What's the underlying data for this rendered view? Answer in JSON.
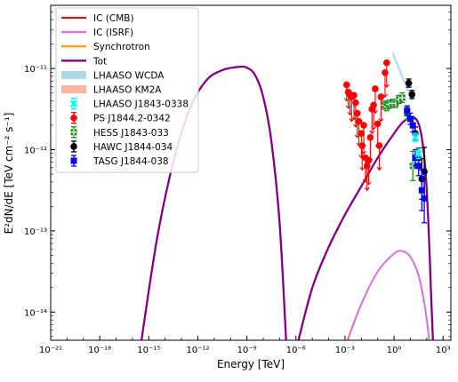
{
  "chart_data": {
    "type": "scatter",
    "title": "",
    "xlabel": "Energy [TeV]",
    "ylabel": "E²dN/dE  [TeV cm⁻² s⁻¹]",
    "x_scale": "log",
    "y_scale": "log",
    "xlim": [
      1e-21,
      3000
    ],
    "ylim": [
      4.5e-15,
      6e-11
    ],
    "grid": false,
    "legend_position": "top-left",
    "x_ticks": [
      {
        "label": "10⁻²¹",
        "value": 1e-21
      },
      {
        "label": "10⁻¹⁸",
        "value": 1e-18
      },
      {
        "label": "10⁻¹⁵",
        "value": 1e-15
      },
      {
        "label": "10⁻¹²",
        "value": 1e-12
      },
      {
        "label": "10⁻⁹",
        "value": 1e-09
      },
      {
        "label": "10⁻⁶",
        "value": 1e-06
      },
      {
        "label": "10⁻³",
        "value": 0.001
      },
      {
        "label": "10⁰",
        "value": 1
      },
      {
        "label": "10³",
        "value": 1000
      }
    ],
    "y_ticks": [
      {
        "label": "10⁻¹⁴",
        "value": 1e-14
      },
      {
        "label": "10⁻¹³",
        "value": 1e-13
      },
      {
        "label": "10⁻¹²",
        "value": 1e-12
      },
      {
        "label": "10⁻¹¹",
        "value": 1e-11
      }
    ],
    "legend": [
      {
        "name": "IC (CMB)",
        "kind": "line",
        "color": "#b22222"
      },
      {
        "name": "IC (ISRF)",
        "kind": "line",
        "color": "#da70d6"
      },
      {
        "name": "Synchrotron",
        "kind": "line",
        "color": "#ffa500"
      },
      {
        "name": "Tot",
        "kind": "line",
        "color": "#800080"
      },
      {
        "name": "LHAASO WCDA",
        "kind": "band",
        "color": "#add8e6"
      },
      {
        "name": "LHAASO KM2A",
        "kind": "band",
        "color": "#ffb6a0"
      },
      {
        "name": "LHAASO J1843-0338",
        "kind": "marker",
        "marker": "x",
        "color": "#00ffff"
      },
      {
        "name": "PS J1844.2-0342",
        "kind": "marker",
        "marker": "circle",
        "color": "#ff0000"
      },
      {
        "name": "HESS J1843-033",
        "kind": "marker",
        "marker": "plus",
        "color": "#228b22"
      },
      {
        "name": "HAWC J1844-034",
        "kind": "marker",
        "marker": "circle",
        "color": "#000000"
      },
      {
        "name": "TASG J1844-038",
        "kind": "marker",
        "marker": "square",
        "color": "#0000ff"
      }
    ],
    "curves": [
      {
        "name": "Tot",
        "color": "#800080",
        "width": 2.3,
        "points": [
          [
            -15.45,
            -14.35
          ],
          [
            -14.5,
            -13.1
          ],
          [
            -13.5,
            -12.15
          ],
          [
            -12.5,
            -11.5
          ],
          [
            -11.5,
            -11.15
          ],
          [
            -10.5,
            -11.02
          ],
          [
            -9.5,
            -10.98
          ],
          [
            -9,
            -10.99
          ],
          [
            -8.5,
            -11.08
          ],
          [
            -8,
            -11.35
          ],
          [
            -7.5,
            -11.9
          ],
          [
            -7,
            -12.9
          ],
          [
            -6.6,
            -14.35
          ]
        ]
      },
      {
        "name": "Tot-IC",
        "color": "#800080",
        "width": 2.3,
        "points": [
          [
            -5.85,
            -14.35
          ],
          [
            -5,
            -13.7
          ],
          [
            -4,
            -13.2
          ],
          [
            -3,
            -12.8
          ],
          [
            -2,
            -12.45
          ],
          [
            -1,
            -12.1
          ],
          [
            0,
            -11.8
          ],
          [
            0.6,
            -11.65
          ],
          [
            1.2,
            -11.6
          ],
          [
            1.6,
            -11.75
          ],
          [
            1.9,
            -12.2
          ],
          [
            2.1,
            -12.9
          ],
          [
            2.25,
            -13.7
          ],
          [
            2.38,
            -14.35
          ]
        ]
      },
      {
        "name": "IC (ISRF)",
        "color": "#da70d6",
        "width": 2,
        "points": [
          [
            -2.85,
            -14.35
          ],
          [
            -2,
            -13.9
          ],
          [
            -1,
            -13.5
          ],
          [
            0,
            -13.28
          ],
          [
            0.5,
            -13.25
          ],
          [
            1,
            -13.32
          ],
          [
            1.5,
            -13.55
          ],
          [
            1.9,
            -13.95
          ],
          [
            2.15,
            -14.35
          ]
        ]
      }
    ],
    "bands": [
      {
        "name": "LHAASO WCDA",
        "color": "#add8e6",
        "x": [
          -0.1,
          1.1
        ],
        "y_upper": [
          -10.77,
          -11.35
        ],
        "y_lower": [
          -10.84,
          -11.43
        ]
      }
    ],
    "series": [
      {
        "name": "PS J1844.2-0342",
        "marker": "circle",
        "color": "#ff0000",
        "points": [
          {
            "x": -2.9,
            "y": -11.2,
            "lo": 0.2
          },
          {
            "x": -2.8,
            "y": -11.29,
            "lo": 0.2
          },
          {
            "x": -2.7,
            "y": -11.32,
            "lo": 0.25
          },
          {
            "x": -2.6,
            "y": -11.35,
            "lo": 0.3
          },
          {
            "x": -2.45,
            "y": -11.33,
            "lo": 0.3
          },
          {
            "x": -2.35,
            "y": -11.42,
            "lo": 0.3
          },
          {
            "x": -2.25,
            "y": -11.55,
            "lo": 0.3
          },
          {
            "x": -2.15,
            "y": -11.65,
            "lo": 0.3
          },
          {
            "x": -2.0,
            "y": -11.8,
            "lo": 0.3
          },
          {
            "x": -1.95,
            "y": -11.95,
            "lo": 0.3
          },
          {
            "x": -1.85,
            "y": -11.7,
            "lo": 0.35
          },
          {
            "x": -1.75,
            "y": -12.1,
            "lo": 0.3
          },
          {
            "x": -1.65,
            "y": -12.2,
            "lo": 0.3
          },
          {
            "x": -1.55,
            "y": -12.13,
            "lo": 0.3
          },
          {
            "x": -1.45,
            "y": -11.85,
            "lo": 0.3
          },
          {
            "x": -1.35,
            "y": -11.5,
            "lo": 0.3
          },
          {
            "x": -1.25,
            "y": -11.45,
            "lo": 0.3
          },
          {
            "x": -1.15,
            "y": -11.25,
            "lo": 0.3
          },
          {
            "x": -1.0,
            "y": -11.68,
            "lo": 0.3
          },
          {
            "x": -0.9,
            "y": -11.95,
            "lo": 0.3
          },
          {
            "x": -0.8,
            "y": -11.35,
            "lo": 0.3
          },
          {
            "x": -0.55,
            "y": -11.05,
            "lo": 0.3
          },
          {
            "x": -0.45,
            "y": -10.93,
            "lo": 0.3
          }
        ]
      },
      {
        "name": "HESS J1843-033",
        "marker": "plus",
        "color": "#228b22",
        "points": [
          {
            "x": -0.6,
            "y": -11.45,
            "err": 0.05
          },
          {
            "x": -0.45,
            "y": -11.47,
            "err": 0.05
          },
          {
            "x": -0.3,
            "y": -11.44,
            "err": 0.05
          },
          {
            "x": -0.1,
            "y": -11.43,
            "err": 0.05
          },
          {
            "x": 0.1,
            "y": -11.43,
            "err": 0.05
          },
          {
            "x": 0.3,
            "y": -11.38,
            "err": 0.05
          },
          {
            "x": 0.5,
            "y": -11.36,
            "err": 0.06
          },
          {
            "x": 0.8,
            "y": -11.55,
            "err": 0.08
          },
          {
            "x": 1.15,
            "y": -12.2,
            "err": 0.18
          }
        ]
      },
      {
        "name": "HAWC J1844-034",
        "marker": "circle",
        "color": "#000000",
        "points": [
          {
            "x": 0.9,
            "y": -11.18,
            "err": 0.05
          },
          {
            "x": 1.1,
            "y": -11.32,
            "err": 0.05
          },
          {
            "x": 1.3,
            "y": -11.8,
            "err": 0.08
          },
          {
            "x": 1.5,
            "y": -12.1,
            "err": 0.12
          },
          {
            "x": 1.7,
            "y": -12.36,
            "err": 0.25
          },
          {
            "x": 1.85,
            "y": -12.27,
            "err": 0.3
          }
        ]
      },
      {
        "name": "TASG J1844-038",
        "marker": "square",
        "color": "#0000ff",
        "points": [
          {
            "x": 0.8,
            "y": -11.52,
            "err": 0.06
          },
          {
            "x": 1.0,
            "y": -11.62,
            "err": 0.07
          },
          {
            "x": 1.15,
            "y": -11.7,
            "err": 0.08
          },
          {
            "x": 1.3,
            "y": -12.1,
            "err": 0.1
          },
          {
            "x": 1.5,
            "y": -12.2,
            "err": 0.12
          },
          {
            "x": 1.7,
            "y": -12.5,
            "err": 0.25
          },
          {
            "x": 1.85,
            "y": -12.6,
            "err": 0.3
          }
        ]
      },
      {
        "name": "LHAASO J1843-0338",
        "marker": "x",
        "color": "#00ffff",
        "points": [
          {
            "x": 1.3,
            "y": -11.85,
            "err": 0.05
          },
          {
            "x": 1.5,
            "y": -12.05,
            "err": 0.06
          }
        ]
      }
    ]
  }
}
